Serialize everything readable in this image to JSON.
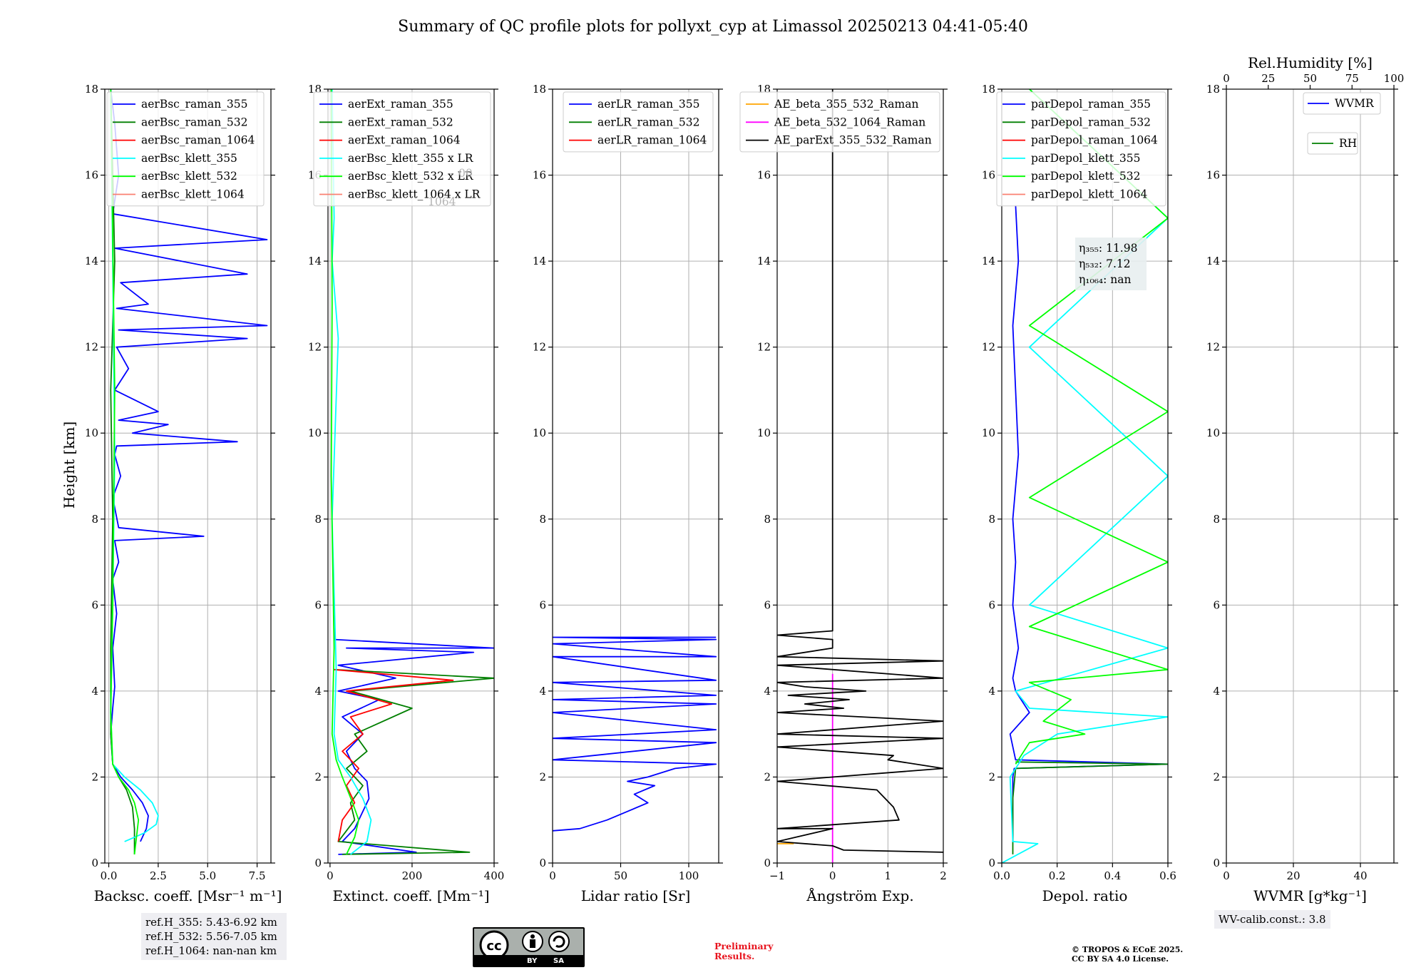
{
  "title": "Summary of QC profile plots for pollyxt_cyp at Limassol 20250213 04:41-05:40",
  "chart_data": [
    {
      "type": "line",
      "panel": "backscatter",
      "xlabel": "Backsc. coeff. [Msr⁻¹ m⁻¹]",
      "ylabel": "Height [km]",
      "xlim": [
        -0.2,
        8.2
      ],
      "ylim": [
        0,
        18
      ],
      "xticks": [
        {
          "v": 0,
          "label": "0.0"
        },
        {
          "v": 2.5,
          "label": "2.5"
        },
        {
          "v": 5,
          "label": "5.0"
        },
        {
          "v": 7.5,
          "label": "7.5"
        }
      ],
      "yticks": [
        0,
        2,
        4,
        6,
        8,
        10,
        12,
        14,
        16,
        18
      ],
      "legend": [
        "aerBsc_raman_355",
        "aerBsc_raman_532",
        "aerBsc_raman_1064",
        "aerBsc_klett_355",
        "aerBsc_klett_532",
        "aerBsc_klett_1064"
      ],
      "series": [
        {
          "name": "aerBsc_raman_355",
          "color": "#0000ff",
          "x": [
            1.6,
            1.9,
            2.0,
            1.7,
            1.2,
            0.6,
            0.2,
            0.1,
            0.2,
            0.3,
            0.2,
            0.4,
            0.2,
            0.5,
            0.3,
            4.8,
            0.5,
            0.2,
            0.6,
            0.3,
            0.4,
            6.5,
            1.2,
            3.0,
            0.5,
            2.5,
            0.3,
            1.0,
            0.4,
            7.0,
            0.5,
            8.0,
            0.4,
            2.0,
            0.6,
            7.0,
            0.3,
            8.0,
            0.2,
            0.5,
            0.3,
            0.1
          ],
          "y": [
            0.5,
            0.8,
            1.1,
            1.4,
            1.7,
            2.0,
            2.3,
            3.0,
            3.6,
            4.1,
            5.0,
            5.8,
            6.6,
            7.0,
            7.5,
            7.6,
            7.8,
            8.5,
            9.0,
            9.5,
            9.7,
            9.8,
            10.0,
            10.2,
            10.3,
            10.5,
            11.0,
            11.5,
            12.0,
            12.2,
            12.4,
            12.5,
            12.9,
            13.0,
            13.5,
            13.7,
            14.3,
            14.5,
            15.1,
            16.0,
            17.2,
            18.0
          ]
        },
        {
          "name": "aerBsc_raman_532",
          "color": "#007f00",
          "x": [
            1.3,
            1.3,
            1.2,
            0.9,
            0.5,
            0.2,
            0.1,
            0.1,
            0.2,
            0.1,
            0.3,
            0.1
          ],
          "y": [
            0.2,
            0.8,
            1.3,
            1.7,
            2.0,
            2.3,
            3.0,
            5.0,
            8.0,
            11.0,
            14.0,
            18.0
          ]
        },
        {
          "name": "aerBsc_raman_1064",
          "color": "#ff0000",
          "x": [],
          "y": []
        },
        {
          "name": "aerBsc_klett_355",
          "color": "#00ffff",
          "x": [
            0.8,
            1.8,
            2.4,
            2.5,
            2.2,
            1.6,
            0.8,
            0.2,
            0.1,
            0.2,
            0.3,
            0.2,
            0.1
          ],
          "y": [
            0.5,
            0.7,
            0.9,
            1.1,
            1.4,
            1.7,
            2.0,
            2.3,
            3.5,
            6.0,
            9.5,
            14.0,
            18.0
          ]
        },
        {
          "name": "aerBsc_klett_532",
          "color": "#00ff00",
          "x": [
            1.3,
            1.4,
            1.5,
            1.3,
            1.0,
            0.5,
            0.2,
            0.1,
            0.2,
            0.3,
            0.1
          ],
          "y": [
            0.2,
            0.6,
            1.0,
            1.4,
            1.7,
            2.0,
            2.3,
            3.5,
            6.0,
            11.0,
            18.0
          ]
        },
        {
          "name": "aerBsc_klett_1064",
          "color": "#fa8072",
          "x": [],
          "y": []
        }
      ]
    },
    {
      "type": "line",
      "panel": "extinction",
      "xlabel": "Extinct. coeff. [Mm⁻¹]",
      "xlim": [
        -5,
        400
      ],
      "ylim": [
        0,
        18
      ],
      "xticks": [
        {
          "v": 0,
          "label": "0"
        },
        {
          "v": 200,
          "label": "200"
        },
        {
          "v": 400,
          "label": "400"
        }
      ],
      "yticks": [
        0,
        2,
        4,
        6,
        8,
        10,
        12,
        14,
        16,
        18
      ],
      "legend": [
        "aerExt_raman_355",
        "aerExt_raman_532",
        "aerExt_raman_1064",
        "aerBsc_klett_355 x LR",
        "aerBsc_klett_532 x LR",
        "aerBsc_klett_1064 x LR"
      ],
      "legend_hidden_text": [
        "00",
        "1064"
      ],
      "series": [
        {
          "name": "aerExt_raman_355",
          "color": "#0000ff",
          "x": [
            20,
            210,
            30,
            60,
            80,
            95,
            90,
            60,
            40,
            80,
            30,
            120,
            20,
            160,
            20,
            350,
            40,
            400,
            10,
            10
          ],
          "y": [
            0.2,
            0.25,
            0.5,
            0.8,
            1.2,
            1.5,
            1.9,
            2.2,
            2.6,
            3.0,
            3.4,
            3.8,
            4.0,
            4.3,
            4.6,
            4.9,
            5.0,
            5.0,
            5.2,
            6.0
          ]
        },
        {
          "name": "aerExt_raman_532",
          "color": "#007f00",
          "x": [
            30,
            340,
            20,
            60,
            50,
            80,
            40,
            90,
            60,
            200,
            50,
            400,
            10
          ],
          "y": [
            0.2,
            0.25,
            0.5,
            1.0,
            1.4,
            1.8,
            2.2,
            2.6,
            3.0,
            3.6,
            4.0,
            4.3,
            4.5
          ]
        },
        {
          "name": "aerExt_raman_1064",
          "color": "#ff0000",
          "x": [
            20,
            30,
            60,
            40,
            70,
            30,
            80,
            50,
            150,
            40,
            300,
            10
          ],
          "y": [
            0.5,
            1.0,
            1.4,
            1.8,
            2.2,
            2.6,
            3.0,
            3.4,
            3.7,
            4.0,
            4.25,
            4.5
          ]
        },
        {
          "name": "aerBsc_klett_355 x LR",
          "color": "#00ffff",
          "x": [
            50,
            90,
            100,
            80,
            50,
            20,
            10,
            15,
            5,
            20,
            5,
            10,
            5
          ],
          "y": [
            0.2,
            0.5,
            1.0,
            1.5,
            2.0,
            2.4,
            3.0,
            4.5,
            8.0,
            12.2,
            14.0,
            15.0,
            18.0
          ]
        },
        {
          "name": "aerBsc_klett_532 x LR",
          "color": "#00ff00",
          "x": [
            40,
            60,
            70,
            55,
            30,
            15,
            5,
            10,
            3,
            5,
            3
          ],
          "y": [
            0.2,
            0.6,
            1.0,
            1.4,
            2.0,
            2.4,
            3.0,
            5.0,
            9.0,
            13.0,
            18.0
          ]
        },
        {
          "name": "aerBsc_klett_1064 x LR",
          "color": "#fa8072",
          "x": [],
          "y": []
        }
      ]
    },
    {
      "type": "line",
      "panel": "lidar_ratio",
      "xlabel": "Lidar ratio [Sr]",
      "xlim": [
        0,
        122
      ],
      "ylim": [
        0,
        18
      ],
      "xticks": [
        {
          "v": 0,
          "label": "0"
        },
        {
          "v": 50,
          "label": "50"
        },
        {
          "v": 100,
          "label": "100"
        }
      ],
      "yticks": [
        0,
        2,
        4,
        6,
        8,
        10,
        12,
        14,
        16,
        18
      ],
      "legend": [
        "aerLR_raman_355",
        "aerLR_raman_532",
        "aerLR_raman_1064"
      ],
      "series": [
        {
          "name": "aerLR_raman_355",
          "color": "#0000ff",
          "x": [
            0,
            20,
            40,
            55,
            70,
            60,
            75,
            55,
            70,
            90,
            120,
            0,
            120,
            0,
            120,
            0,
            120,
            0,
            120,
            0,
            120,
            0,
            120,
            0,
            120,
            0,
            120
          ],
          "y": [
            0.75,
            0.8,
            1.0,
            1.2,
            1.4,
            1.6,
            1.8,
            1.9,
            2.0,
            2.2,
            2.3,
            2.4,
            2.8,
            2.9,
            3.1,
            3.5,
            3.7,
            3.8,
            3.9,
            4.2,
            4.25,
            4.8,
            4.8,
            5.1,
            5.2,
            5.25,
            5.25
          ]
        },
        {
          "name": "aerLR_raman_532",
          "color": "#007f00",
          "x": [],
          "y": []
        },
        {
          "name": "aerLR_raman_1064",
          "color": "#ff0000",
          "x": [],
          "y": []
        }
      ]
    },
    {
      "type": "line",
      "panel": "angstrom",
      "xlabel": "Ångström Exp.",
      "xlim": [
        -1,
        2
      ],
      "ylim": [
        0,
        18
      ],
      "xticks": [
        {
          "v": -1,
          "label": "−1"
        },
        {
          "v": 0,
          "label": "0"
        },
        {
          "v": 1,
          "label": "1"
        },
        {
          "v": 2,
          "label": "2"
        }
      ],
      "yticks": [
        0,
        2,
        4,
        6,
        8,
        10,
        12,
        14,
        16,
        18
      ],
      "legend": [
        "AE_beta_355_532_Raman",
        "AE_beta_532_1064_Raman",
        "AE_parExt_355_532_Raman"
      ],
      "series": [
        {
          "name": "AE_beta_355_532_Raman",
          "color": "#ffa500",
          "x": [
            -1,
            -0.7
          ],
          "y": [
            0.45,
            0.45
          ]
        },
        {
          "name": "AE_beta_532_1064_Raman",
          "color": "#ff00ff",
          "x": [
            0,
            0
          ],
          "y": [
            0,
            4.4
          ]
        },
        {
          "name": "AE_parExt_355_532_Raman",
          "color": "#000000",
          "x": [
            2,
            0.2,
            0.0,
            -1,
            0.0,
            -1,
            1.2,
            1.1,
            0.8,
            -1,
            2,
            1.0,
            1.1,
            -1,
            2,
            -1,
            2,
            -1,
            0.2,
            -0.5,
            0.3,
            -0.8,
            0.6,
            -0.5,
            -1,
            2,
            -1,
            2,
            -1,
            0,
            0,
            -1,
            0,
            0
          ],
          "y": [
            0.25,
            0.3,
            0.4,
            0.5,
            0.8,
            0.8,
            1.0,
            1.3,
            1.7,
            1.9,
            2.2,
            2.4,
            2.5,
            2.7,
            2.9,
            3.0,
            3.3,
            3.5,
            3.6,
            3.7,
            3.8,
            3.9,
            4.0,
            4.1,
            4.2,
            4.3,
            4.6,
            4.7,
            4.8,
            5.0,
            5.2,
            5.3,
            5.4,
            18.0
          ]
        }
      ]
    },
    {
      "type": "line",
      "panel": "depol",
      "xlabel": "Depol. ratio",
      "xlim": [
        0,
        0.6
      ],
      "ylim": [
        0,
        18
      ],
      "xticks": [
        {
          "v": 0,
          "label": "0.0"
        },
        {
          "v": 0.2,
          "label": "0.2"
        },
        {
          "v": 0.4,
          "label": "0.4"
        },
        {
          "v": 0.6,
          "label": "0.6"
        }
      ],
      "yticks": [
        0,
        2,
        4,
        6,
        8,
        10,
        12,
        14,
        16,
        18
      ],
      "legend": [
        "parDepol_raman_355",
        "parDepol_raman_532",
        "parDepol_raman_1064",
        "parDepol_klett_355",
        "parDepol_klett_532",
        "parDepol_klett_1064"
      ],
      "annotation": [
        {
          "label": "η₃₅₅: 11.98"
        },
        {
          "label": "η₅₃₂: 7.12"
        },
        {
          "label": "η₁₀₆₄: nan"
        }
      ],
      "series": [
        {
          "name": "parDepol_raman_355",
          "color": "#0000ff",
          "x": [
            0.04,
            0.04,
            0.045,
            0.6,
            0.05,
            0.03,
            0.1,
            0.05,
            0.04,
            0.06,
            0.04,
            0.05,
            0.04,
            0.06,
            0.05,
            0.04,
            0.06,
            0.05
          ],
          "y": [
            0.5,
            2.0,
            2.2,
            2.3,
            2.4,
            3.0,
            3.5,
            4.0,
            4.3,
            5.0,
            6.0,
            7.0,
            8.0,
            9.5,
            11.0,
            12.5,
            14.0,
            15.3
          ]
        },
        {
          "name": "parDepol_raman_532",
          "color": "#007f00",
          "x": [
            0.04,
            0.04,
            0.05,
            0.6,
            0.05
          ],
          "y": [
            0.2,
            1.5,
            2.2,
            2.3,
            2.35
          ]
        },
        {
          "name": "parDepol_raman_1064",
          "color": "#ff0000",
          "x": [],
          "y": []
        },
        {
          "name": "parDepol_klett_355",
          "color": "#00ffff",
          "x": [
            0.0,
            0.13,
            0.04,
            0.03,
            0.08,
            0.2,
            0.6,
            0.1,
            0.05,
            0.6,
            0.1,
            0.6,
            0.1,
            0.6,
            0.1
          ],
          "y": [
            0.0,
            0.45,
            0.5,
            2.0,
            2.5,
            3.0,
            3.4,
            3.6,
            4.0,
            5.0,
            6.0,
            9.0,
            12.0,
            15.0,
            18.0
          ]
        },
        {
          "name": "parDepol_klett_532",
          "color": "#00ff00",
          "x": [
            0.05,
            0.1,
            0.3,
            0.15,
            0.25,
            0.1,
            0.6,
            0.1,
            0.6,
            0.1,
            0.6,
            0.1,
            0.6,
            0.1
          ],
          "y": [
            2.3,
            2.8,
            3.0,
            3.3,
            3.8,
            4.2,
            4.5,
            5.5,
            7.0,
            8.5,
            10.5,
            12.5,
            15.0,
            18.0
          ]
        },
        {
          "name": "parDepol_klett_1064",
          "color": "#fa8072",
          "x": [],
          "y": []
        }
      ]
    },
    {
      "type": "line",
      "panel": "wvmr",
      "xlabel": "WVMR [g*kg⁻¹]",
      "top_xlabel": "Rel.Humidity [%]",
      "xlim": [
        0,
        50
      ],
      "ylim": [
        0,
        18
      ],
      "xticks": [
        {
          "v": 0,
          "label": "0"
        },
        {
          "v": 20,
          "label": "20"
        },
        {
          "v": 40,
          "label": "40"
        }
      ],
      "top_xticks": [
        {
          "v": 0,
          "label": "0"
        },
        {
          "v": 25,
          "label": "25"
        },
        {
          "v": 50,
          "label": "50"
        },
        {
          "v": 75,
          "label": "75"
        },
        {
          "v": 100,
          "label": "100"
        }
      ],
      "yticks": [
        0,
        2,
        4,
        6,
        8,
        10,
        12,
        14,
        16,
        18
      ],
      "legend": [
        "WVMR",
        "RH"
      ],
      "series": [
        {
          "name": "WVMR",
          "color": "#0000ff",
          "x": [],
          "y": []
        },
        {
          "name": "RH",
          "color": "#007f00",
          "x": [],
          "y": []
        }
      ]
    }
  ],
  "ref_heights": [
    "ref.H_355: 5.43-6.92 km",
    "ref.H_532: 5.56-7.05 km",
    "ref.H_1064: nan-nan km"
  ],
  "wv_calib": "WV-calib.const.: 3.8",
  "preliminary": [
    "Preliminary",
    "Results."
  ],
  "copyright": [
    "© TROPOS & ECoE 2025.",
    "CC BY SA 4.0 License."
  ],
  "cc_badge": {
    "by": "BY",
    "sa": "SA"
  }
}
